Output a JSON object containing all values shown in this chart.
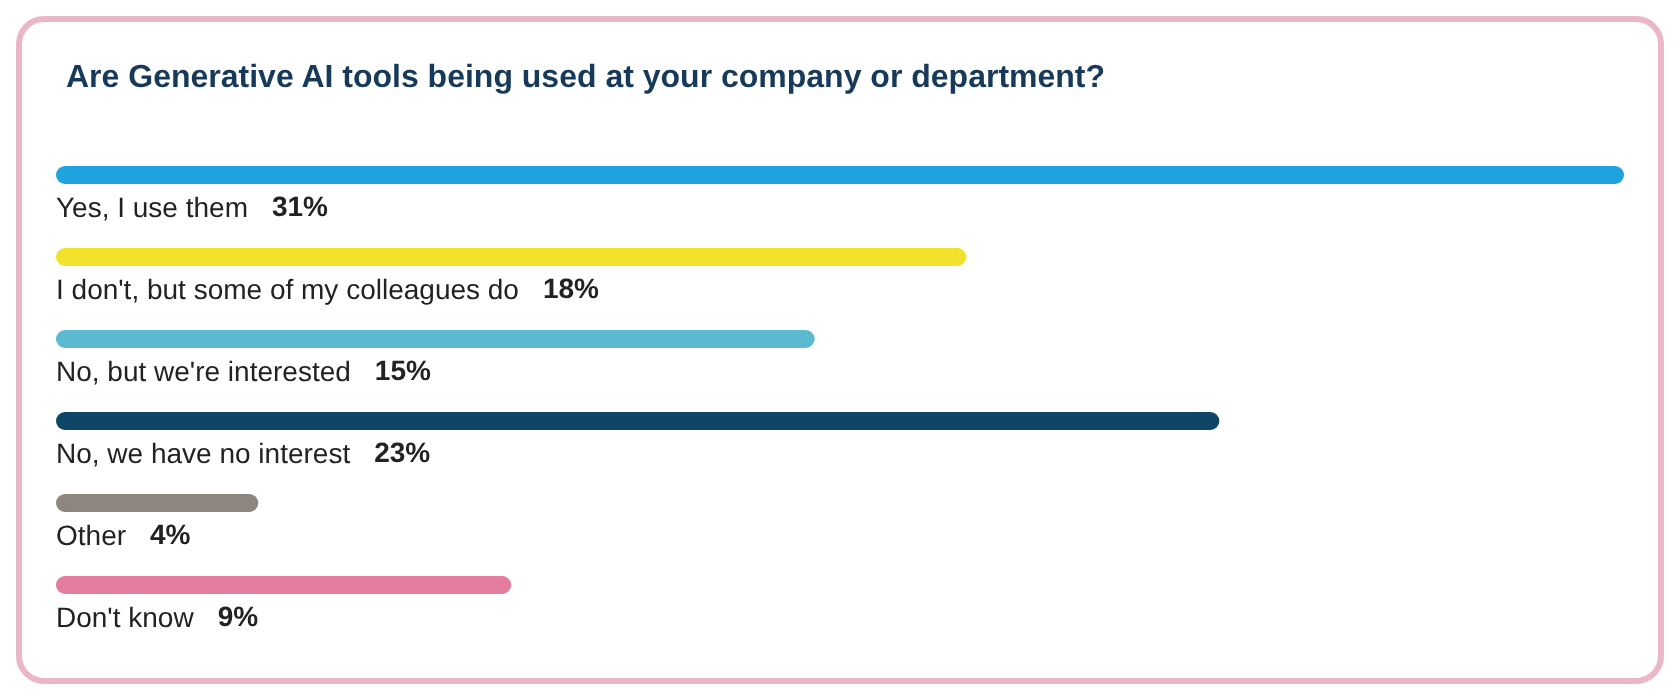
{
  "chart_data": {
    "type": "bar",
    "orientation": "horizontal",
    "title": "Are Generative AI tools being used at your company or department?",
    "categories": [
      "Yes, I use them",
      "I don't, but some of my colleagues do",
      "No, but we're interested",
      "No, we have no interest",
      "Other",
      "Don't know"
    ],
    "values": [
      31,
      18,
      15,
      23,
      4,
      9
    ],
    "colors": [
      "#1ea3de",
      "#f2e22c",
      "#5bb9d0",
      "#0f4566",
      "#8c8580",
      "#e27d9d"
    ],
    "value_labels": [
      "31%",
      "18%",
      "15%",
      "23%",
      "4%",
      "9%"
    ]
  }
}
